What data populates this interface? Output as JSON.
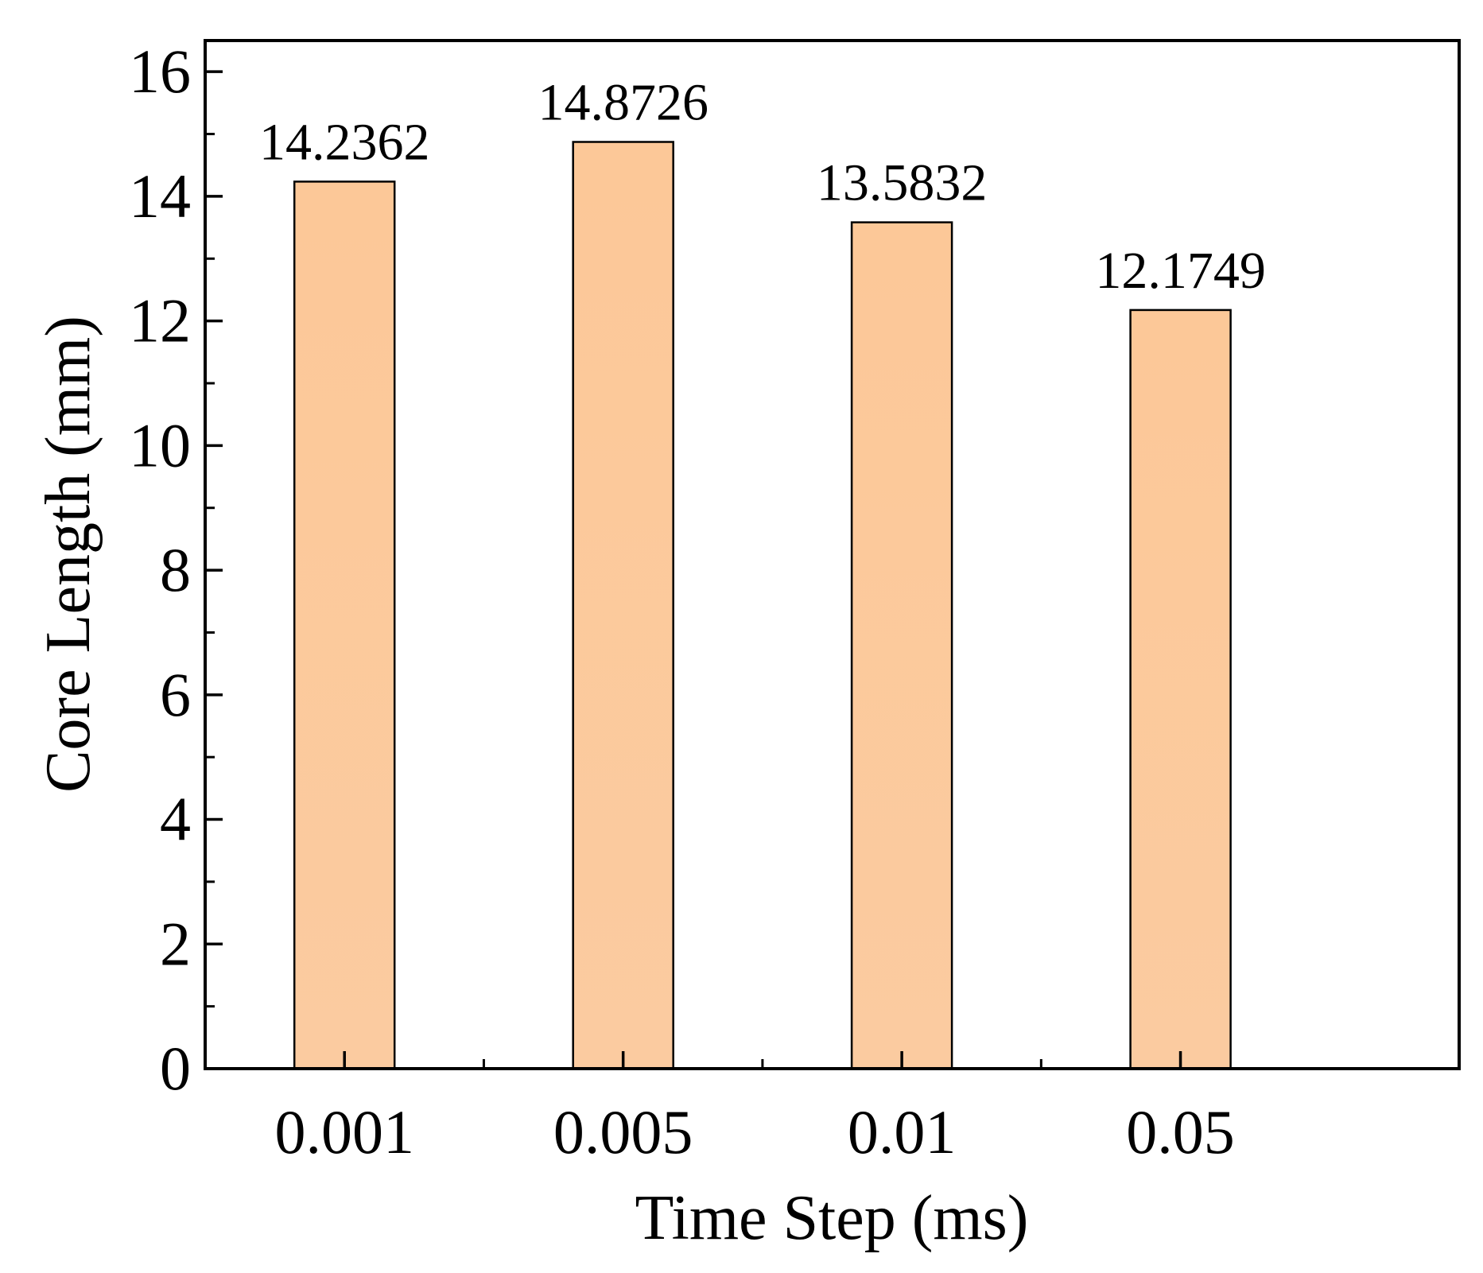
{
  "chart_data": {
    "type": "bar",
    "categories": [
      "0.001",
      "0.005",
      "0.01",
      "0.05"
    ],
    "values": [
      14.2362,
      14.8726,
      13.5832,
      12.1749
    ],
    "data_labels": [
      "14.2362",
      "14.8726",
      "13.5832",
      "12.1749"
    ],
    "xlabel": "Time Step (ms)",
    "ylabel": "Core Length (mm)",
    "ylim": [
      0,
      16.5
    ],
    "yticks": [
      0,
      2,
      4,
      6,
      8,
      10,
      12,
      14,
      16
    ],
    "ytick_labels": [
      "0",
      "2",
      "4",
      "6",
      "8",
      "10",
      "12",
      "14",
      "16"
    ],
    "grid": false,
    "legend": "none",
    "colors": {
      "bar_fill": "#fcc99a",
      "bar_edge": "#000000",
      "axis": "#000000"
    }
  }
}
